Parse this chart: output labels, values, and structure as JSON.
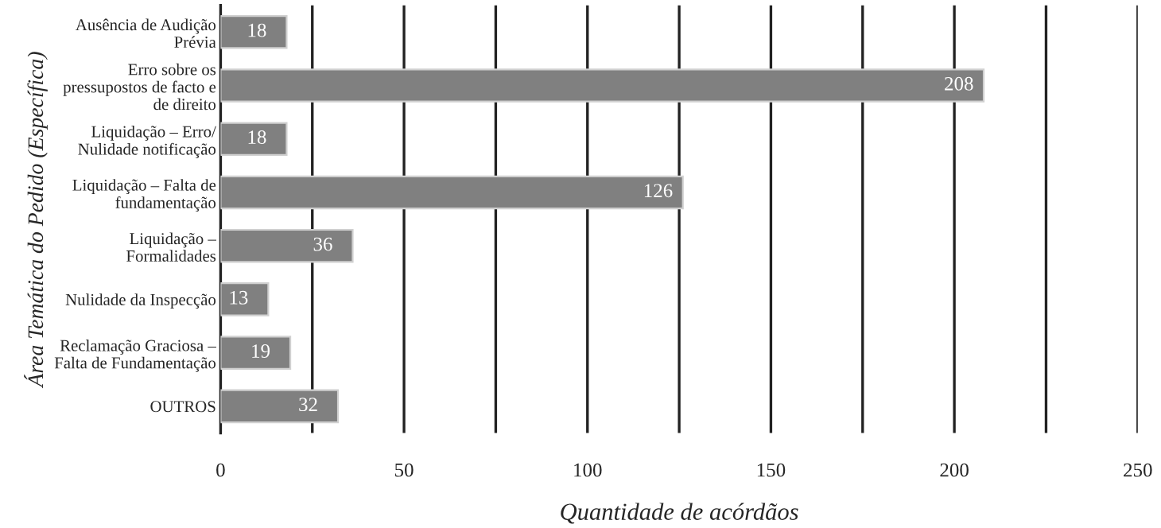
{
  "chart_data": {
    "type": "bar",
    "orientation": "horizontal",
    "xlabel": "Quantidade de acórdãos",
    "ylabel": "Área Temática do Pedido (Específica)",
    "categories": [
      "Ausência de Audição\nPrévia",
      "Erro sobre os\npressupostos de facto e\nde direito",
      "Liquidação – Erro/\nNulidade notificação",
      "Liquidação – Falta de\nfundamentação",
      "Liquidação –\nFormalidades",
      "Nulidade da Inspecção",
      "Reclamação Graciosa –\nFalta de Fundamentação",
      "OUTROS"
    ],
    "values": [
      18,
      208,
      18,
      126,
      36,
      13,
      19,
      32
    ],
    "color": "#808080",
    "data_labels": true,
    "xlim": [
      0,
      250
    ],
    "xticks": [
      0,
      {
        "value": 25,
        "label": null
      },
      50,
      {
        "value": 75,
        "label": null
      },
      100,
      {
        "value": 125,
        "label": null
      },
      150,
      {
        "value": 175,
        "label": null
      },
      200,
      {
        "value": 225,
        "label": null
      },
      250
    ],
    "grid": "x"
  }
}
